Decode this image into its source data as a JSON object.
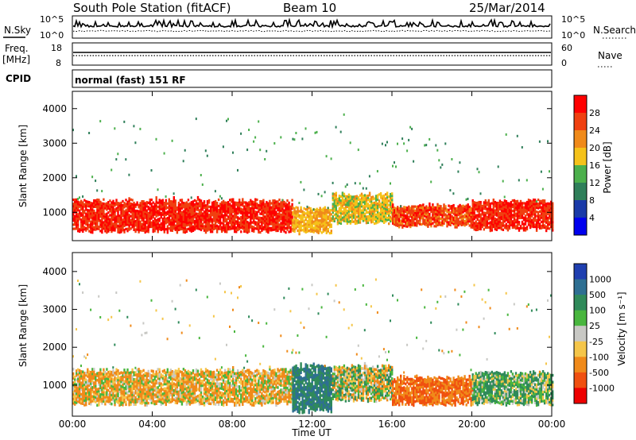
{
  "header": {
    "station": "South Pole Station (fitACF)",
    "beam": "Beam 10",
    "date": "25/Mar/2014"
  },
  "noise_panel": {
    "left_label": "N.Sky",
    "right_label": "N.Search",
    "ticks_left": [
      "10^5",
      "10^0"
    ],
    "ticks_right": [
      "10^5",
      "10^0"
    ]
  },
  "freq_panel": {
    "left_label_1": "Freq.",
    "left_label_2": "[MHz]",
    "ticks_left": [
      "18",
      "8"
    ],
    "right_label": "Nave",
    "ticks_right": [
      "60",
      "0"
    ]
  },
  "cpid_panel": {
    "label": "CPID",
    "text": "normal (fast) 151 RF"
  },
  "power_panel": {
    "ylabel": "Slant Range [km]",
    "yticks": [
      "1000",
      "2000",
      "3000",
      "4000"
    ],
    "colorbar_label": "Power [dB]",
    "colorbar_ticks": [
      "4",
      "8",
      "12",
      "16",
      "20",
      "24",
      "28"
    ],
    "colors": [
      "#0000ee",
      "#1a3aa8",
      "#2f7f5a",
      "#4cb04c",
      "#f5c21a",
      "#f08a1a",
      "#f04010",
      "#ff0000"
    ]
  },
  "velocity_panel": {
    "ylabel": "Slant Range [km]",
    "yticks": [
      "1000",
      "2000",
      "3000",
      "4000"
    ],
    "colorbar_label": "Velocity [m s⁻¹]",
    "colorbar_ticks": [
      "1000",
      "500",
      "100",
      "25",
      "-25",
      "-100",
      "-500",
      "-1000"
    ],
    "colors": [
      "#1f3fb0",
      "#2e6f92",
      "#2f8a5a",
      "#49b63e",
      "#c8c8c4",
      "#f5c64a",
      "#f08a1a",
      "#f05010",
      "#ee0000"
    ]
  },
  "xaxis": {
    "label": "Time UT",
    "ticks": [
      "00:00",
      "04:00",
      "08:00",
      "12:00",
      "16:00",
      "20:00",
      "00:00"
    ]
  },
  "chart_data": {
    "type": "heatmap",
    "x_range_hours": [
      0,
      24
    ],
    "y_range_km": [
      180,
      4500
    ],
    "panels": [
      {
        "name": "Power",
        "unit": "dB",
        "colorbar_range": [
          0,
          32
        ],
        "bands": [
          {
            "hours": [
              0,
              11
            ],
            "range_km": [
              450,
              1350
            ],
            "value": 28
          },
          {
            "hours": [
              11,
              13
            ],
            "range_km": [
              400,
              1100
            ],
            "value": 20
          },
          {
            "hours": [
              13,
              16
            ],
            "range_km": [
              700,
              1500
            ],
            "value": 18
          },
          {
            "hours": [
              16,
              20
            ],
            "range_km": [
              600,
              1200
            ],
            "value": 26
          },
          {
            "hours": [
              20,
              24
            ],
            "range_km": [
              500,
              1300
            ],
            "value": 28
          }
        ]
      },
      {
        "name": "Velocity",
        "unit": "m s-1",
        "colorbar_levels": [
          1000,
          500,
          100,
          25,
          -25,
          -100,
          -500,
          -1000
        ],
        "bands": [
          {
            "hours": [
              0,
              11
            ],
            "range_km": [
              500,
              1400
            ],
            "value": -100
          },
          {
            "hours": [
              11,
              13
            ],
            "range_km": [
              300,
              1500
            ],
            "value": 500
          },
          {
            "hours": [
              13,
              16
            ],
            "range_km": [
              600,
              1500
            ],
            "value": 0
          },
          {
            "hours": [
              16,
              20
            ],
            "range_km": [
              500,
              1200
            ],
            "value": -500
          },
          {
            "hours": [
              20,
              24
            ],
            "range_km": [
              500,
              1300
            ],
            "value": 100
          }
        ]
      }
    ]
  }
}
